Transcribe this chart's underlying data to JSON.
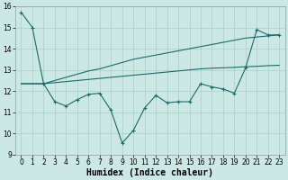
{
  "xlabel": "Humidex (Indice chaleur)",
  "xlim": [
    -0.5,
    23.5
  ],
  "ylim": [
    9,
    16
  ],
  "xticks": [
    0,
    1,
    2,
    3,
    4,
    5,
    6,
    7,
    8,
    9,
    10,
    11,
    12,
    13,
    14,
    15,
    16,
    17,
    18,
    19,
    20,
    21,
    22,
    23
  ],
  "yticks": [
    9,
    10,
    11,
    12,
    13,
    14,
    15,
    16
  ],
  "bg_color": "#cce8e4",
  "grid_color": "#aacfcb",
  "line_color": "#1a6b68",
  "line1_x": [
    0,
    1,
    2,
    3,
    4,
    5,
    6,
    7,
    8,
    9,
    10,
    11,
    12,
    13,
    14,
    15,
    16,
    17,
    18,
    19,
    20,
    21,
    22,
    23
  ],
  "line1_y": [
    15.72,
    15.0,
    12.35,
    11.5,
    11.3,
    11.6,
    11.85,
    11.9,
    11.1,
    9.55,
    10.15,
    11.2,
    11.8,
    11.45,
    11.5,
    11.5,
    12.35,
    12.2,
    12.1,
    11.9,
    13.1,
    14.9,
    14.65,
    14.65
  ],
  "line2_x": [
    0,
    1,
    2,
    3,
    4,
    5,
    6,
    7,
    8,
    9,
    10,
    11,
    12,
    13,
    14,
    15,
    16,
    17,
    18,
    19,
    20,
    21,
    22,
    23
  ],
  "line2_y": [
    12.35,
    12.35,
    12.35,
    12.5,
    12.65,
    12.8,
    12.95,
    13.05,
    13.2,
    13.35,
    13.5,
    13.6,
    13.7,
    13.8,
    13.9,
    14.0,
    14.1,
    14.2,
    14.3,
    14.4,
    14.5,
    14.55,
    14.6,
    14.65
  ],
  "line3_x": [
    0,
    1,
    2,
    3,
    4,
    5,
    6,
    7,
    8,
    9,
    10,
    11,
    12,
    13,
    14,
    15,
    16,
    17,
    18,
    19,
    20,
    21,
    22,
    23
  ],
  "line3_y": [
    12.35,
    12.35,
    12.35,
    12.4,
    12.45,
    12.5,
    12.55,
    12.6,
    12.65,
    12.7,
    12.75,
    12.8,
    12.85,
    12.9,
    12.95,
    13.0,
    13.05,
    13.08,
    13.1,
    13.12,
    13.15,
    13.17,
    13.2,
    13.22
  ],
  "fontsize_label": 7,
  "fontsize_tick": 5.5
}
